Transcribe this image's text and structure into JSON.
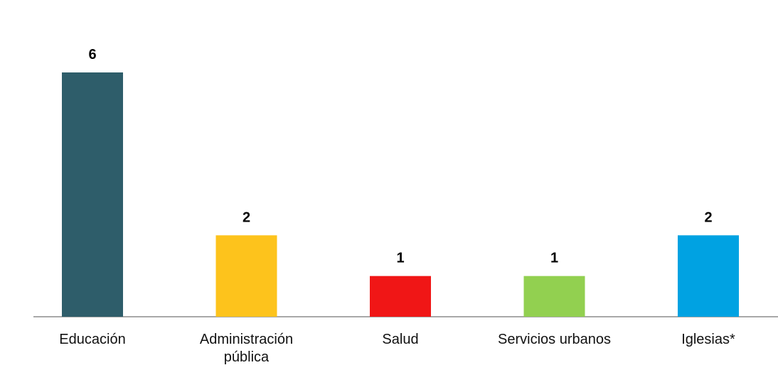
{
  "chart_data": {
    "type": "bar",
    "categories": [
      "Educación",
      "Administración pública",
      "Salud",
      "Servicios urbanos",
      "Iglesias*"
    ],
    "values": [
      6,
      2,
      1,
      1,
      2
    ],
    "colors": [
      "#2e5d6a",
      "#fdc31c",
      "#f01616",
      "#92d050",
      "#00a2e2"
    ]
  }
}
